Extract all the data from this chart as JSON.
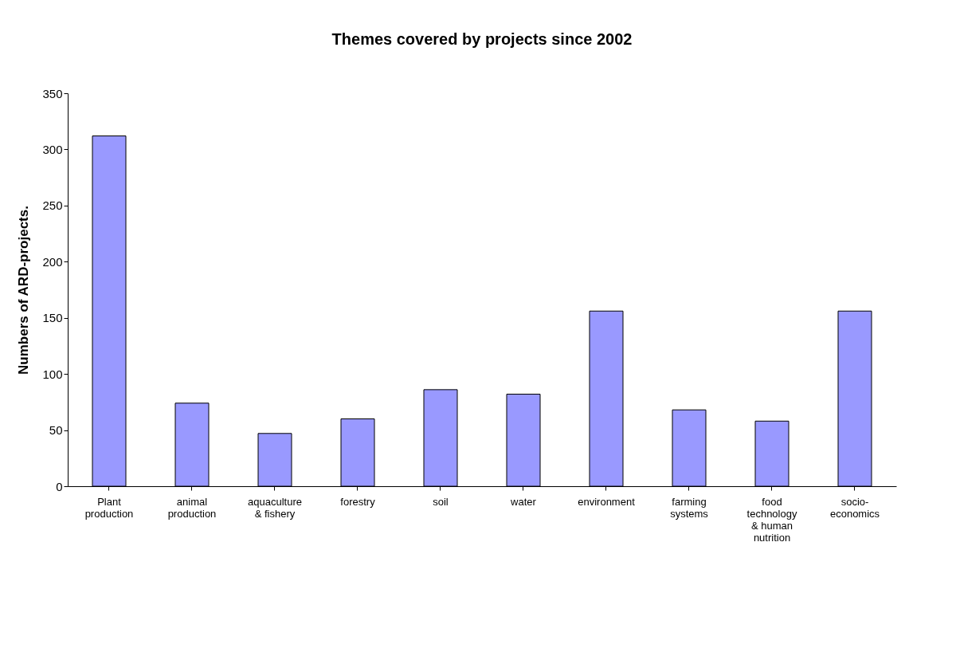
{
  "chart_data": {
    "type": "bar",
    "title": "Themes covered by projects since 2002",
    "ylabel": "Numbers of ARD-projects.",
    "categories": [
      "Plant production",
      "animal production",
      "aquaculture & fishery",
      "forestry",
      "soil",
      "water",
      "environment",
      "farming systems",
      "food technology & human nutrition",
      "socio-economics"
    ],
    "values": [
      312,
      74,
      47,
      60,
      86,
      82,
      156,
      68,
      58,
      156
    ],
    "color": "#9999ff",
    "ylim": [
      0,
      350
    ],
    "yticks": [
      0,
      50,
      100,
      150,
      200,
      250,
      300,
      350
    ],
    "grid": false
  }
}
